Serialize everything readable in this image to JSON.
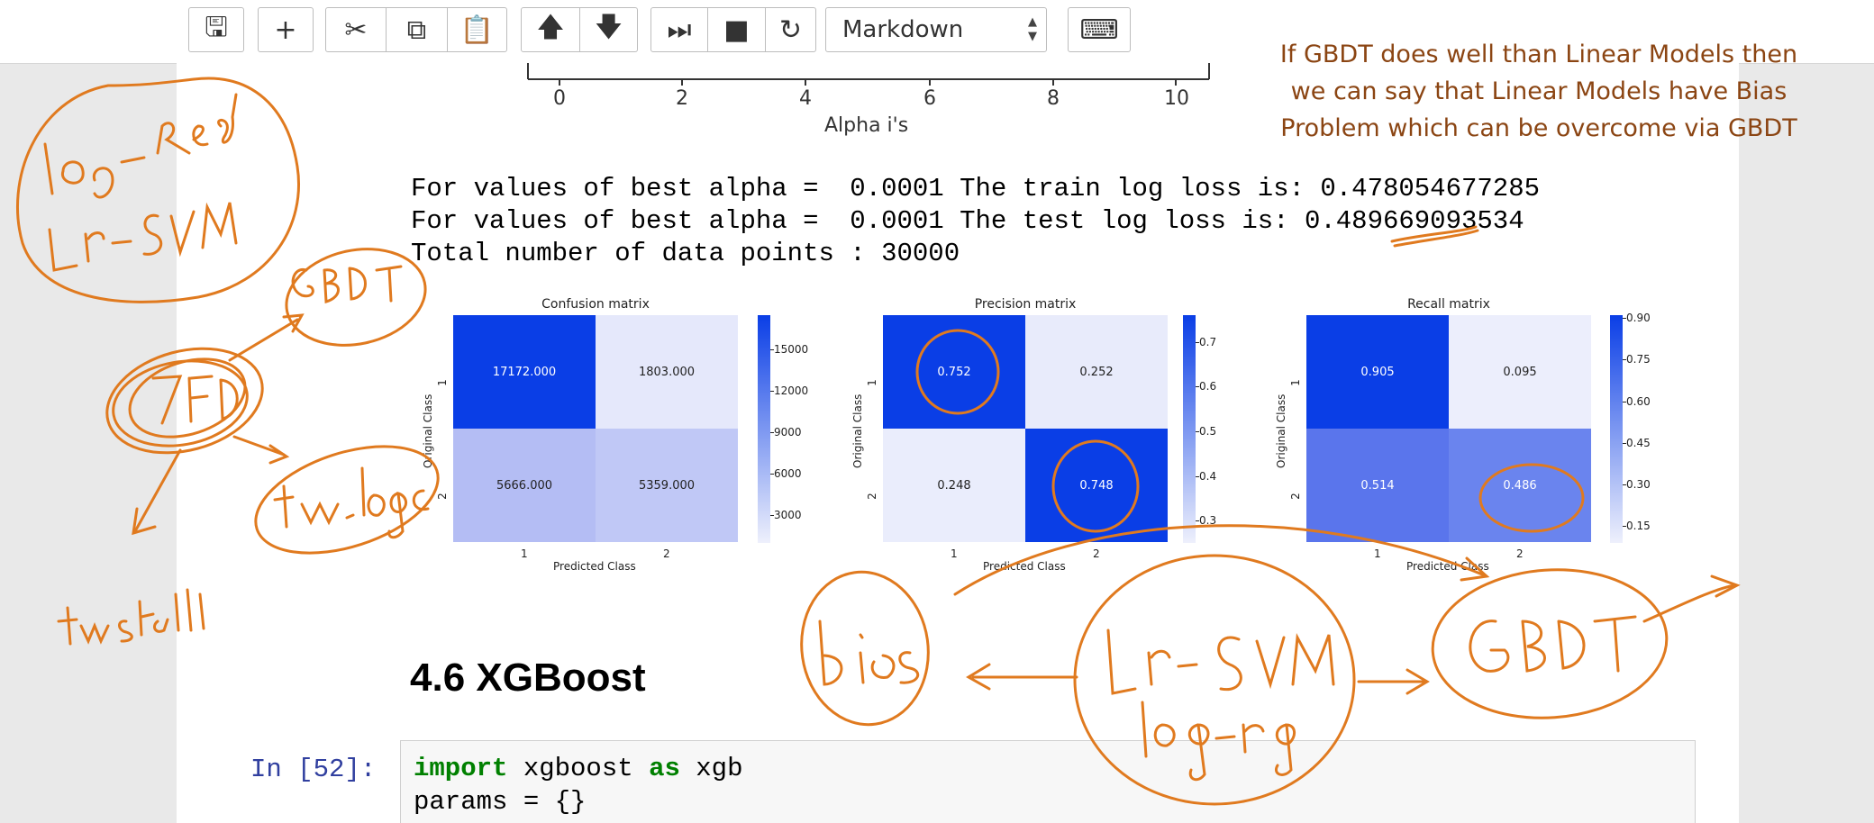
{
  "toolbar": {
    "buttons": [
      {
        "name": "save-button",
        "glyph": "🖫"
      },
      {
        "name": "insert-cell-button",
        "glyph": "+"
      },
      {
        "name": "cut-button",
        "glyph": "✂"
      },
      {
        "name": "copy-button",
        "glyph": "⧉"
      },
      {
        "name": "paste-button",
        "glyph": "📋"
      },
      {
        "name": "move-up-button",
        "glyph": "🡅"
      },
      {
        "name": "move-down-button",
        "glyph": "🡇"
      },
      {
        "name": "run-button",
        "glyph": "⏭"
      },
      {
        "name": "interrupt-button",
        "glyph": "■"
      },
      {
        "name": "restart-button",
        "glyph": "↻"
      },
      {
        "name": "keyboard-button",
        "glyph": "⌨"
      }
    ],
    "cell_type": "Markdown"
  },
  "annotation_text": "If GBDT does well than Linear Models then we can say that Linear Models have Bias Problem which can be overcome via GBDT",
  "top_axis": {
    "ticks": [
      "0",
      "2",
      "4",
      "6",
      "8",
      "10"
    ],
    "label": "Alpha i's"
  },
  "output_lines": [
    "For values of best alpha =  0.0001 The train log loss is: 0.478054677285",
    "For values of best alpha =  0.0001 The test log loss is: 0.489669093534",
    "Total number of data points : 30000"
  ],
  "chart_data": [
    {
      "type": "heatmap",
      "title": "Confusion matrix",
      "xlabel": "Predicted Class",
      "ylabel": "Original Class",
      "row_labels": [
        "1",
        "2"
      ],
      "col_labels": [
        "1",
        "2"
      ],
      "values": [
        [
          "17172.000",
          "1803.000"
        ],
        [
          "5666.000",
          "5359.000"
        ]
      ],
      "colorbar_ticks": [
        "15000",
        "12000",
        "9000",
        "6000",
        "3000"
      ],
      "colors": [
        [
          "#0a3ee6",
          "#e5e8fb"
        ],
        [
          "#b4bdf4",
          "#c0c8f6"
        ]
      ]
    },
    {
      "type": "heatmap",
      "title": "Precision matrix",
      "xlabel": "Predicted Class",
      "ylabel": "Original Class",
      "row_labels": [
        "1",
        "2"
      ],
      "col_labels": [
        "1",
        "2"
      ],
      "values": [
        [
          "0.752",
          "0.252"
        ],
        [
          "0.248",
          "0.748"
        ]
      ],
      "colorbar_ticks": [
        "0.7",
        "0.6",
        "0.5",
        "0.4",
        "0.3"
      ],
      "colors": [
        [
          "#0a3ee6",
          "#e8ebfb"
        ],
        [
          "#eaedfc",
          "#0a3ee6"
        ]
      ]
    },
    {
      "type": "heatmap",
      "title": "Recall matrix",
      "xlabel": "Predicted Class",
      "ylabel": "Original Class",
      "row_labels": [
        "1",
        "2"
      ],
      "col_labels": [
        "1",
        "2"
      ],
      "values": [
        [
          "0.905",
          "0.095"
        ],
        [
          "0.514",
          "0.486"
        ]
      ],
      "colorbar_ticks": [
        "0.90",
        "0.75",
        "0.60",
        "0.45",
        "0.30",
        "0.15"
      ],
      "colors": [
        [
          "#0a3ee6",
          "#eceefc"
        ],
        [
          "#5a75ec",
          "#6a84ee"
        ]
      ]
    }
  ],
  "section_heading": "4.6 XGBoost",
  "code_cell": {
    "prompt": "In [52]:",
    "lines": [
      {
        "kw1": "import",
        "rest": " xgboost ",
        "kw2": "as",
        "tail": " xgb"
      },
      {
        "kw1": "",
        "rest": "params = {}",
        "kw2": "",
        "tail": ""
      }
    ]
  },
  "handwriting": [
    "log-Reg",
    "Lr-SVM",
    "GBDT",
    "TFD",
    "tw-logc",
    "tw-tfidf",
    "bias",
    "Lr-SVM",
    "log-reg",
    "GBDT"
  ]
}
